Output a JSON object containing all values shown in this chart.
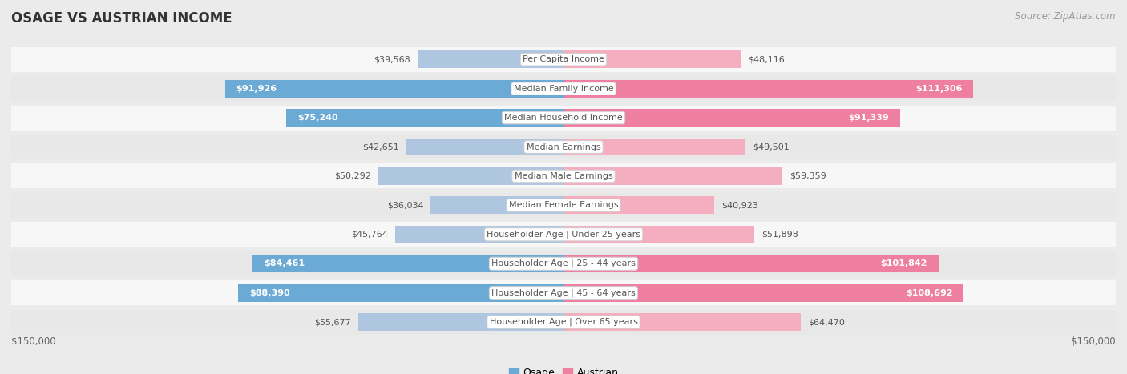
{
  "title": "OSAGE VS AUSTRIAN INCOME",
  "source": "Source: ZipAtlas.com",
  "categories": [
    "Per Capita Income",
    "Median Family Income",
    "Median Household Income",
    "Median Earnings",
    "Median Male Earnings",
    "Median Female Earnings",
    "Householder Age | Under 25 years",
    "Householder Age | 25 - 44 years",
    "Householder Age | 45 - 64 years",
    "Householder Age | Over 65 years"
  ],
  "osage_values": [
    39568,
    91926,
    75240,
    42651,
    50292,
    36034,
    45764,
    84461,
    88390,
    55677
  ],
  "austrian_values": [
    48116,
    111306,
    91339,
    49501,
    59359,
    40923,
    51898,
    101842,
    108692,
    64470
  ],
  "osage_labels": [
    "$39,568",
    "$91,926",
    "$75,240",
    "$42,651",
    "$50,292",
    "$36,034",
    "$45,764",
    "$84,461",
    "$88,390",
    "$55,677"
  ],
  "austrian_labels": [
    "$48,116",
    "$111,306",
    "$91,339",
    "$49,501",
    "$59,359",
    "$40,923",
    "$51,898",
    "$101,842",
    "$108,692",
    "$64,470"
  ],
  "osage_color_normal": "#aec6e0",
  "osage_color_highlight": "#6aaad4",
  "austrian_color_normal": "#f5aec0",
  "austrian_color_highlight": "#ee7fa0",
  "max_value": 150000,
  "background_color": "#ebebeb",
  "row_bg_light": "#f7f7f7",
  "row_bg_dark": "#e8e8e8",
  "highlight_rows": [
    1,
    2,
    7,
    8
  ],
  "title_fontsize": 12,
  "label_fontsize": 8,
  "category_fontsize": 8,
  "source_fontsize": 8.5
}
